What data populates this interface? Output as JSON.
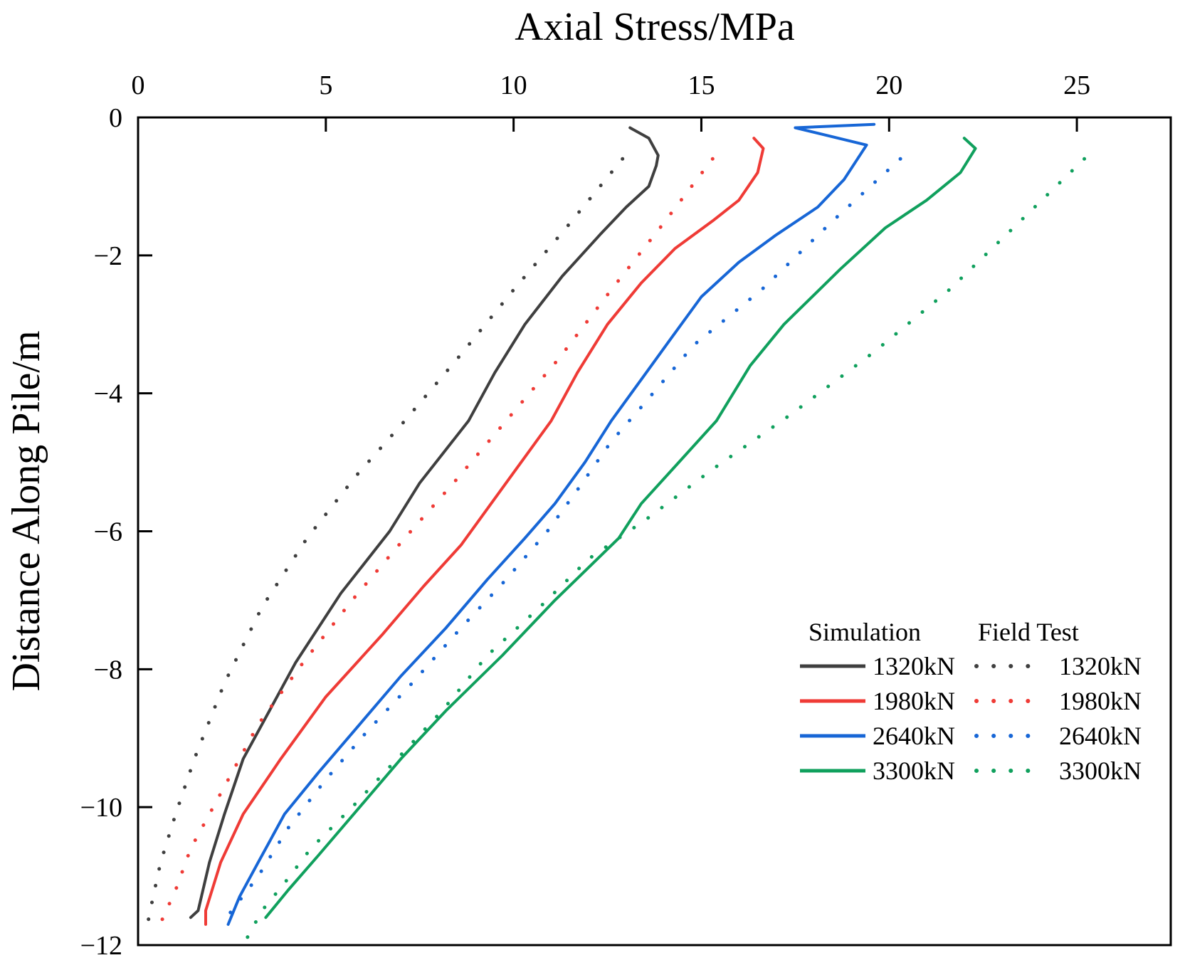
{
  "chart_data": {
    "type": "line",
    "title": "",
    "xlabel": "Axial Stress/MPa",
    "ylabel": "Distance Along Pile/m",
    "xlim": [
      0,
      27.5
    ],
    "ylim": [
      -12,
      0
    ],
    "x_ticks": [
      0,
      5,
      10,
      15,
      20,
      25
    ],
    "x_tick_labels": [
      "0",
      "5",
      "10",
      "15",
      "20",
      "25"
    ],
    "y_ticks": [
      0,
      -2,
      -4,
      -6,
      -8,
      -10,
      -12
    ],
    "y_tick_labels": [
      "0",
      "−2",
      "−4",
      "−6",
      "−8",
      "−10",
      "−12"
    ],
    "grid": false,
    "legend": {
      "position": "bottom-right",
      "simulation_header": "Simulation",
      "field_header": "Field Test",
      "entries": [
        "1320kN",
        "1980kN",
        "2640kN",
        "3300kN"
      ]
    },
    "series": [
      {
        "name": "1320kN",
        "group": "Simulation",
        "style": "solid",
        "color": "#3f3f3f",
        "points": [
          [
            13.1,
            -0.15
          ],
          [
            13.6,
            -0.3
          ],
          [
            13.85,
            -0.55
          ],
          [
            13.8,
            -0.7
          ],
          [
            13.6,
            -1.0
          ],
          [
            13.0,
            -1.3
          ],
          [
            12.3,
            -1.7
          ],
          [
            11.3,
            -2.3
          ],
          [
            10.3,
            -3.0
          ],
          [
            9.5,
            -3.7
          ],
          [
            8.8,
            -4.4
          ],
          [
            7.5,
            -5.3
          ],
          [
            6.7,
            -6.0
          ],
          [
            5.4,
            -6.9
          ],
          [
            4.2,
            -7.9
          ],
          [
            3.4,
            -8.7
          ],
          [
            2.8,
            -9.3
          ],
          [
            2.3,
            -10.1
          ],
          [
            1.9,
            -10.8
          ],
          [
            1.6,
            -11.5
          ],
          [
            1.4,
            -11.6
          ]
        ]
      },
      {
        "name": "1980kN",
        "group": "Simulation",
        "style": "solid",
        "color": "#ef3b36",
        "points": [
          [
            16.4,
            -0.3
          ],
          [
            16.65,
            -0.45
          ],
          [
            16.5,
            -0.8
          ],
          [
            16.0,
            -1.2
          ],
          [
            15.3,
            -1.5
          ],
          [
            14.3,
            -1.9
          ],
          [
            13.4,
            -2.4
          ],
          [
            12.5,
            -3.0
          ],
          [
            11.7,
            -3.7
          ],
          [
            11.0,
            -4.4
          ],
          [
            10.2,
            -5.0
          ],
          [
            9.4,
            -5.6
          ],
          [
            8.6,
            -6.2
          ],
          [
            7.6,
            -6.8
          ],
          [
            6.5,
            -7.5
          ],
          [
            5.0,
            -8.4
          ],
          [
            3.8,
            -9.3
          ],
          [
            2.8,
            -10.1
          ],
          [
            2.2,
            -10.8
          ],
          [
            1.8,
            -11.5
          ],
          [
            1.8,
            -11.7
          ]
        ]
      },
      {
        "name": "2640kN",
        "group": "Simulation",
        "style": "solid",
        "color": "#1766d6",
        "points": [
          [
            19.6,
            -0.1
          ],
          [
            17.5,
            -0.15
          ],
          [
            19.4,
            -0.4
          ],
          [
            18.8,
            -0.9
          ],
          [
            18.1,
            -1.3
          ],
          [
            17.0,
            -1.7
          ],
          [
            16.0,
            -2.1
          ],
          [
            15.0,
            -2.6
          ],
          [
            14.2,
            -3.2
          ],
          [
            13.4,
            -3.8
          ],
          [
            12.6,
            -4.4
          ],
          [
            11.9,
            -5.0
          ],
          [
            11.1,
            -5.6
          ],
          [
            10.3,
            -6.1
          ],
          [
            9.3,
            -6.7
          ],
          [
            8.2,
            -7.4
          ],
          [
            7.0,
            -8.1
          ],
          [
            5.9,
            -8.8
          ],
          [
            4.8,
            -9.5
          ],
          [
            3.9,
            -10.1
          ],
          [
            3.2,
            -10.8
          ],
          [
            2.7,
            -11.3
          ],
          [
            2.4,
            -11.7
          ]
        ]
      },
      {
        "name": "3300kN",
        "group": "Simulation",
        "style": "solid",
        "color": "#10a05d",
        "points": [
          [
            22.0,
            -0.3
          ],
          [
            22.3,
            -0.45
          ],
          [
            21.9,
            -0.8
          ],
          [
            21.0,
            -1.2
          ],
          [
            19.9,
            -1.6
          ],
          [
            18.7,
            -2.2
          ],
          [
            17.2,
            -3.0
          ],
          [
            16.3,
            -3.6
          ],
          [
            15.4,
            -4.4
          ],
          [
            14.4,
            -5.0
          ],
          [
            13.4,
            -5.6
          ],
          [
            12.8,
            -6.1
          ],
          [
            11.1,
            -7.0
          ],
          [
            9.7,
            -7.8
          ],
          [
            8.2,
            -8.6
          ],
          [
            7.0,
            -9.3
          ],
          [
            5.9,
            -10.0
          ],
          [
            4.8,
            -10.7
          ],
          [
            4.0,
            -11.2
          ],
          [
            3.4,
            -11.6
          ]
        ]
      },
      {
        "name": "1320kN",
        "group": "Field Test",
        "style": "dotted",
        "color": "#3f3f3f",
        "points": [
          [
            12.9,
            -0.6
          ],
          [
            11.4,
            -1.6
          ],
          [
            10.0,
            -2.5
          ],
          [
            8.5,
            -3.5
          ],
          [
            7.1,
            -4.4
          ],
          [
            5.8,
            -5.2
          ],
          [
            4.5,
            -6.1
          ],
          [
            3.3,
            -7.1
          ],
          [
            2.3,
            -8.2
          ],
          [
            1.5,
            -9.3
          ],
          [
            1.0,
            -10.1
          ],
          [
            0.6,
            -10.8
          ],
          [
            0.4,
            -11.3
          ],
          [
            0.25,
            -11.7
          ]
        ]
      },
      {
        "name": "1980kN",
        "group": "Field Test",
        "style": "dotted",
        "color": "#ef3b36",
        "points": [
          [
            15.3,
            -0.6
          ],
          [
            13.9,
            -1.6
          ],
          [
            12.6,
            -2.5
          ],
          [
            11.2,
            -3.5
          ],
          [
            9.8,
            -4.4
          ],
          [
            8.4,
            -5.3
          ],
          [
            7.1,
            -6.1
          ],
          [
            5.7,
            -7.0
          ],
          [
            4.4,
            -7.9
          ],
          [
            3.2,
            -8.8
          ],
          [
            2.3,
            -9.7
          ],
          [
            1.4,
            -10.6
          ],
          [
            1.0,
            -11.2
          ],
          [
            0.5,
            -11.8
          ]
        ]
      },
      {
        "name": "2640kN",
        "group": "Field Test",
        "style": "dotted",
        "color": "#1766d6",
        "points": [
          [
            20.3,
            -0.6
          ],
          [
            18.5,
            -1.5
          ],
          [
            16.6,
            -2.5
          ],
          [
            14.8,
            -3.3
          ],
          [
            13.4,
            -4.2
          ],
          [
            12.6,
            -4.7
          ],
          [
            11.7,
            -5.4
          ],
          [
            10.9,
            -6.0
          ],
          [
            9.8,
            -6.7
          ],
          [
            8.6,
            -7.4
          ],
          [
            7.3,
            -8.2
          ],
          [
            6.1,
            -8.9
          ],
          [
            5.0,
            -9.6
          ],
          [
            4.0,
            -10.3
          ],
          [
            3.2,
            -11.0
          ],
          [
            2.5,
            -11.5
          ],
          [
            2.2,
            -11.7
          ]
        ]
      },
      {
        "name": "3300kN",
        "group": "Field Test",
        "style": "dotted",
        "color": "#10a05d",
        "points": [
          [
            25.2,
            -0.6
          ],
          [
            23.5,
            -1.5
          ],
          [
            21.6,
            -2.5
          ],
          [
            19.6,
            -3.4
          ],
          [
            17.4,
            -4.3
          ],
          [
            15.3,
            -5.1
          ],
          [
            13.6,
            -5.8
          ],
          [
            12.0,
            -6.4
          ],
          [
            10.7,
            -7.1
          ],
          [
            9.3,
            -7.8
          ],
          [
            8.1,
            -8.6
          ],
          [
            6.9,
            -9.3
          ],
          [
            5.7,
            -10.0
          ],
          [
            4.6,
            -10.6
          ],
          [
            3.9,
            -11.1
          ],
          [
            3.3,
            -11.5
          ],
          [
            2.9,
            -11.9
          ]
        ]
      }
    ]
  }
}
